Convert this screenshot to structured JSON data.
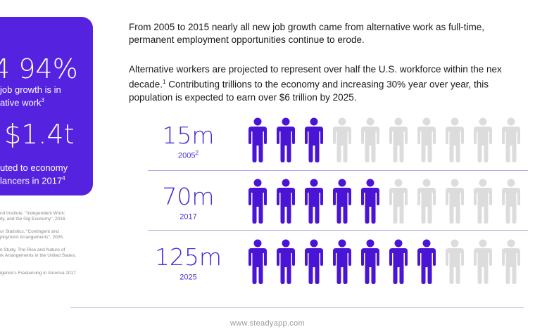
{
  "stat_card": {
    "stat1_value": "4 94%",
    "stat1_line1": "job growth is in",
    "stat1_line2": "ative work",
    "stat1_sup": "3",
    "stat2_value": "$1.4t",
    "stat2_line1": "uted to economy",
    "stat2_line2": "lancers in 2017",
    "stat2_sup": "4"
  },
  "references": [
    "nd Institute, \"Independent Work:",
    "ity, and the Gig Economy\", 2016.",
    "or Statistics, \"Contingent and",
    "ployment Arrangements\", 2005.",
    "n Study, The Rise and Nature of",
    "rk Arrangements in the United States,",
    "igence's Freelancing in America 2017"
  ],
  "paragraphs": {
    "p1_line1": "From 2005 to 2015 nearly all new job growth came from alternative work as full-time,",
    "p1_line2": "permanent employment opportunities continue to erode.",
    "p2_line1": "Alternative workers are projected to represent over half the U.S. workforce within the nex",
    "p2_line2_pre": "decade.",
    "p2_line2_sup": "1",
    "p2_line2_post": " Contributing trillions to the economy and increasing 30% year over year, this",
    "p2_line3": "population is expected to earn over $6 trillion by 2025."
  },
  "rows": [
    {
      "value": "15m",
      "year": "2005",
      "year_sup": "2",
      "filled": 3,
      "total": 10
    },
    {
      "value": "70m",
      "year": "2017",
      "year_sup": "",
      "filled": 5,
      "total": 10
    },
    {
      "value": "125m",
      "year": "2025",
      "year_sup": "",
      "filled": 7,
      "total": 10
    }
  ],
  "colors": {
    "accent": "#5522e0",
    "filled_person": "#4a14d6",
    "empty_person": "#dcdcdc"
  },
  "icons": {
    "person": "person-icon"
  },
  "footer": {
    "url": "www.steadyapp.com"
  }
}
